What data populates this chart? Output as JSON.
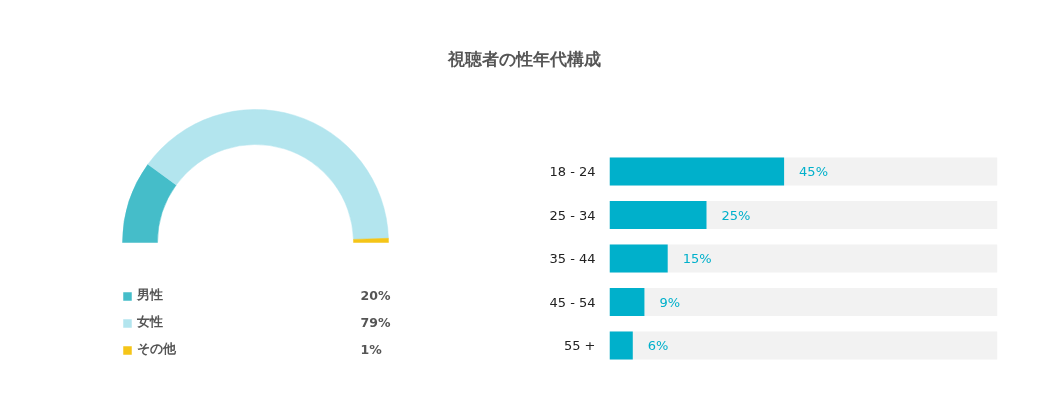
{
  "chart_data": [
    {
      "type": "donut",
      "title": "視聴者の性年代構成",
      "categories": [
        "男性",
        "女性",
        "その他"
      ],
      "values": [
        20,
        79,
        1
      ],
      "colors": [
        "#45bdc9",
        "#b3e5ee",
        "#f5c518"
      ],
      "value_labels": [
        "20%",
        "79%",
        "1%"
      ],
      "legend": "bottom"
    },
    {
      "type": "bar",
      "orientation": "horizontal",
      "categories": [
        "18 - 24",
        "25 - 34",
        "35 - 44",
        "45 - 54",
        "55 +"
      ],
      "values": [
        45,
        25,
        15,
        9,
        6
      ],
      "color": "#00b0cb",
      "value_labels": [
        "45%",
        "25%",
        "15%",
        "9%",
        "6%"
      ],
      "xlim": [
        0,
        100
      ],
      "tick_labels": "y"
    }
  ]
}
